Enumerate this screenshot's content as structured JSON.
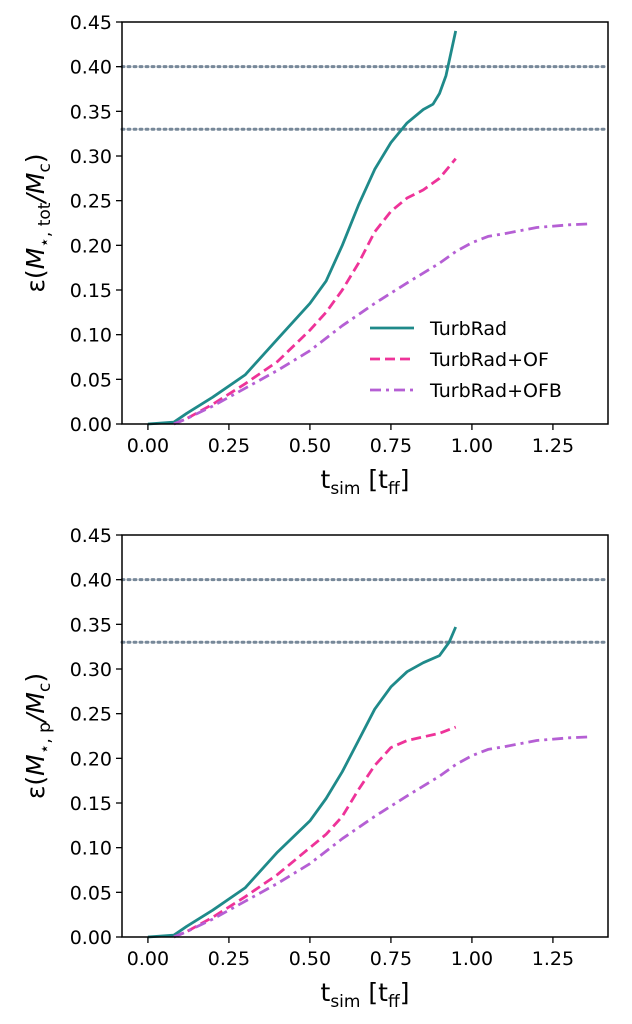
{
  "chart_data": [
    {
      "type": "line",
      "xlabel": "t_sim [t_ff]",
      "ylabel": "ε(M⋆,tot/Mc)",
      "ylabel_parts": {
        "main": "M",
        "sub1": "⋆, tot",
        "mid": "/M",
        "sub2": "c"
      },
      "xlabel_parts": {
        "main": "t",
        "sub": "sim",
        "bracket_open": "[t",
        "bracket_sub": "ff",
        "bracket_close": "]"
      },
      "xlim": [
        -0.08,
        1.42
      ],
      "ylim": [
        0,
        0.45
      ],
      "xticks": [
        0.0,
        0.25,
        0.5,
        0.75,
        1.0,
        1.25
      ],
      "xtick_labels": [
        "0.00",
        "0.25",
        "0.50",
        "0.75",
        "1.00",
        "1.25"
      ],
      "yticks": [
        0.0,
        0.05,
        0.1,
        0.15,
        0.2,
        0.25,
        0.3,
        0.35,
        0.4,
        0.45
      ],
      "ytick_labels": [
        "0.00",
        "0.05",
        "0.10",
        "0.15",
        "0.20",
        "0.25",
        "0.30",
        "0.35",
        "0.40",
        "0.45"
      ],
      "hlines": [
        0.4,
        0.33
      ],
      "hline_color": "#778899",
      "legend_position": "lower right",
      "grid": false,
      "series": [
        {
          "name": "TurbRad",
          "color": "#1f8a8a",
          "style": "solid",
          "x": [
            0.0,
            0.08,
            0.12,
            0.2,
            0.3,
            0.4,
            0.5,
            0.55,
            0.6,
            0.65,
            0.7,
            0.75,
            0.8,
            0.85,
            0.88,
            0.9,
            0.92,
            0.95
          ],
          "y": [
            0.0,
            0.002,
            0.012,
            0.03,
            0.055,
            0.095,
            0.135,
            0.16,
            0.2,
            0.245,
            0.285,
            0.315,
            0.337,
            0.352,
            0.358,
            0.37,
            0.39,
            0.44
          ]
        },
        {
          "name": "TurbRad+OF",
          "color": "#ee3399",
          "style": "dashed",
          "x": [
            0.08,
            0.12,
            0.2,
            0.3,
            0.4,
            0.5,
            0.55,
            0.6,
            0.65,
            0.7,
            0.75,
            0.8,
            0.85,
            0.9,
            0.95
          ],
          "y": [
            0.0,
            0.006,
            0.022,
            0.045,
            0.07,
            0.105,
            0.125,
            0.15,
            0.18,
            0.215,
            0.238,
            0.253,
            0.262,
            0.275,
            0.297
          ]
        },
        {
          "name": "TurbRad+OFB",
          "color": "#b55fd4",
          "style": "dashdot",
          "x": [
            0.08,
            0.12,
            0.2,
            0.3,
            0.4,
            0.5,
            0.6,
            0.7,
            0.8,
            0.9,
            0.95,
            1.0,
            1.05,
            1.1,
            1.2,
            1.3,
            1.36
          ],
          "y": [
            0.0,
            0.006,
            0.02,
            0.04,
            0.06,
            0.082,
            0.11,
            0.135,
            0.158,
            0.18,
            0.193,
            0.203,
            0.21,
            0.213,
            0.22,
            0.223,
            0.224
          ]
        }
      ]
    },
    {
      "type": "line",
      "xlabel": "t_sim [t_ff]",
      "ylabel": "ε(M⋆,p/Mc)",
      "ylabel_parts": {
        "main": "M",
        "sub1": "⋆, p",
        "mid": "/M",
        "sub2": "c"
      },
      "xlabel_parts": {
        "main": "t",
        "sub": "sim",
        "bracket_open": "[t",
        "bracket_sub": "ff",
        "bracket_close": "]"
      },
      "xlim": [
        -0.08,
        1.42
      ],
      "ylim": [
        0,
        0.45
      ],
      "xticks": [
        0.0,
        0.25,
        0.5,
        0.75,
        1.0,
        1.25
      ],
      "xtick_labels": [
        "0.00",
        "0.25",
        "0.50",
        "0.75",
        "1.00",
        "1.25"
      ],
      "yticks": [
        0.0,
        0.05,
        0.1,
        0.15,
        0.2,
        0.25,
        0.3,
        0.35,
        0.4,
        0.45
      ],
      "ytick_labels": [
        "0.00",
        "0.05",
        "0.10",
        "0.15",
        "0.20",
        "0.25",
        "0.30",
        "0.35",
        "0.40",
        "0.45"
      ],
      "hlines": [
        0.4,
        0.33
      ],
      "hline_color": "#778899",
      "grid": false,
      "series": [
        {
          "name": "TurbRad",
          "color": "#1f8a8a",
          "style": "solid",
          "x": [
            0.0,
            0.08,
            0.12,
            0.2,
            0.3,
            0.4,
            0.5,
            0.55,
            0.6,
            0.65,
            0.7,
            0.75,
            0.8,
            0.85,
            0.9,
            0.93,
            0.95
          ],
          "y": [
            0.0,
            0.002,
            0.012,
            0.03,
            0.055,
            0.095,
            0.13,
            0.155,
            0.185,
            0.22,
            0.255,
            0.28,
            0.297,
            0.307,
            0.315,
            0.33,
            0.347
          ]
        },
        {
          "name": "TurbRad+OF",
          "color": "#ee3399",
          "style": "dashed",
          "x": [
            0.08,
            0.12,
            0.2,
            0.3,
            0.4,
            0.5,
            0.55,
            0.6,
            0.65,
            0.7,
            0.75,
            0.8,
            0.85,
            0.9,
            0.95
          ],
          "y": [
            0.0,
            0.006,
            0.022,
            0.045,
            0.07,
            0.1,
            0.115,
            0.135,
            0.165,
            0.192,
            0.212,
            0.22,
            0.224,
            0.228,
            0.235
          ]
        },
        {
          "name": "TurbRad+OFB",
          "color": "#b55fd4",
          "style": "dashdot",
          "x": [
            0.08,
            0.12,
            0.2,
            0.3,
            0.4,
            0.5,
            0.6,
            0.7,
            0.8,
            0.9,
            0.95,
            1.0,
            1.05,
            1.1,
            1.2,
            1.3,
            1.36
          ],
          "y": [
            0.0,
            0.006,
            0.02,
            0.04,
            0.06,
            0.082,
            0.11,
            0.135,
            0.158,
            0.18,
            0.193,
            0.203,
            0.21,
            0.213,
            0.22,
            0.223,
            0.224
          ]
        }
      ]
    }
  ]
}
